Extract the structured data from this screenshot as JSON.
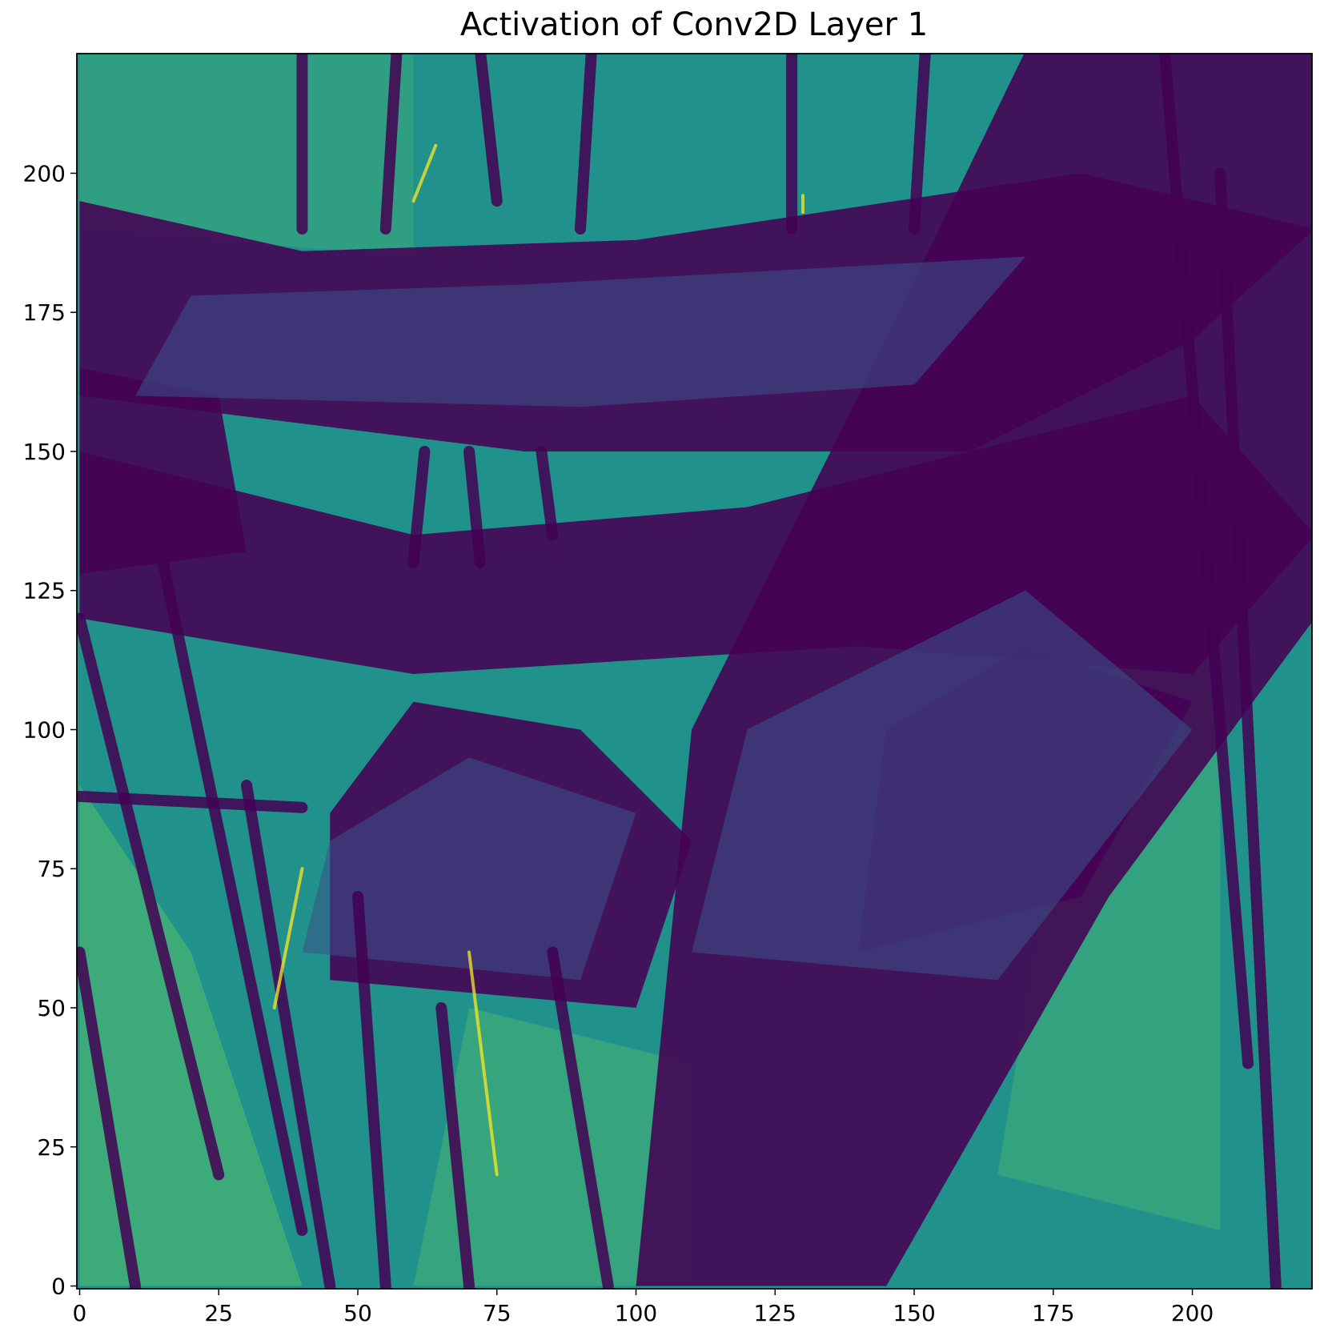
{
  "chart_data": {
    "type": "heatmap",
    "title": "Activation of Conv2D Layer 1",
    "xlabel": "",
    "ylabel": "",
    "colormap": "viridis",
    "image_size": [
      222,
      222
    ],
    "xlim": [
      -0.5,
      221.5
    ],
    "ylim": [
      221.5,
      -0.5
    ],
    "x_ticks": [
      0,
      25,
      50,
      75,
      100,
      125,
      150,
      175,
      200
    ],
    "y_ticks": [
      0,
      25,
      50,
      75,
      100,
      125,
      150,
      175,
      200
    ],
    "x_tick_labels": [
      "0",
      "25",
      "50",
      "75",
      "100",
      "125",
      "150",
      "175",
      "200"
    ],
    "y_tick_labels": [
      "0",
      "25",
      "50",
      "75",
      "100",
      "125",
      "150",
      "175",
      "200"
    ],
    "colors": {
      "dark": "#440154",
      "mid_dark": "#3b528b",
      "mid": "#21918c",
      "mid_light": "#5ec962",
      "light": "#fde725"
    }
  }
}
